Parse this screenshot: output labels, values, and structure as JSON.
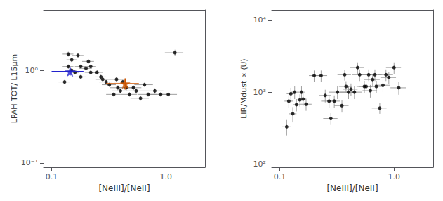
{
  "chart_data": [
    {
      "type": "scatter",
      "log": true,
      "grid": false,
      "xlabel": "[NeIII]/[NeII]",
      "ylabel": "LPAH TOT/ L15μm",
      "xlim": [
        0.085,
        2.2
      ],
      "ylim": [
        0.09,
        4.5
      ],
      "xticks": [
        {
          "value": 0.1,
          "label": "0.1"
        },
        {
          "value": 1.0,
          "label": "1.0"
        }
      ],
      "yticks": [
        {
          "value": 0.1,
          "label": "10⁻¹"
        },
        {
          "value": 1.0,
          "label": "10⁰"
        }
      ],
      "series": [
        {
          "marker": "circle",
          "color": "#000000",
          "x": [
            0.13,
            0.14,
            0.14,
            0.15,
            0.15,
            0.16,
            0.17,
            0.18,
            0.18,
            0.2,
            0.21,
            0.22,
            0.22,
            0.25,
            0.27,
            0.28,
            0.3,
            0.32,
            0.35,
            0.37,
            0.38,
            0.4,
            0.42,
            0.45,
            0.48,
            0.52,
            0.55,
            0.6,
            0.65,
            0.7,
            0.8,
            0.9,
            1.05,
            1.2
          ],
          "y": [
            0.75,
            1.1,
            1.5,
            1.3,
            1.0,
            0.95,
            1.45,
            1.1,
            0.85,
            1.05,
            1.25,
            0.95,
            1.1,
            0.95,
            0.85,
            0.8,
            0.75,
            0.7,
            0.55,
            0.8,
            0.65,
            0.6,
            0.75,
            0.65,
            0.55,
            0.65,
            0.6,
            0.5,
            0.7,
            0.55,
            0.6,
            0.55,
            0.55,
            1.55
          ],
          "xerr_lo": [
            0.015,
            0.015,
            0.015,
            0.015,
            0.015,
            0.015,
            0.02,
            0.02,
            0.02,
            0.025,
            0.025,
            0.025,
            0.025,
            0.03,
            0.03,
            0.035,
            0.04,
            0.045,
            0.05,
            0.055,
            0.055,
            0.06,
            0.065,
            0.07,
            0.08,
            0.09,
            0.1,
            0.11,
            0.12,
            0.13,
            0.15,
            0.17,
            0.2,
            0.22
          ],
          "xerr_hi": [
            0.015,
            0.015,
            0.015,
            0.015,
            0.015,
            0.015,
            0.02,
            0.02,
            0.02,
            0.025,
            0.025,
            0.025,
            0.025,
            0.03,
            0.03,
            0.035,
            0.04,
            0.045,
            0.05,
            0.055,
            0.055,
            0.06,
            0.065,
            0.07,
            0.08,
            0.09,
            0.1,
            0.11,
            0.12,
            0.13,
            0.15,
            0.17,
            0.2,
            0.22
          ],
          "yerr_lo": [
            0.04,
            0.06,
            0.09,
            0.07,
            0.05,
            0.05,
            0.09,
            0.06,
            0.05,
            0.06,
            0.07,
            0.05,
            0.06,
            0.05,
            0.05,
            0.04,
            0.04,
            0.04,
            0.03,
            0.05,
            0.04,
            0.03,
            0.04,
            0.04,
            0.03,
            0.04,
            0.04,
            0.03,
            0.04,
            0.03,
            0.04,
            0.03,
            0.03,
            0.12
          ],
          "yerr_hi": [
            0.04,
            0.06,
            0.09,
            0.07,
            0.05,
            0.05,
            0.09,
            0.06,
            0.05,
            0.06,
            0.07,
            0.05,
            0.06,
            0.05,
            0.05,
            0.04,
            0.04,
            0.04,
            0.03,
            0.05,
            0.04,
            0.03,
            0.04,
            0.04,
            0.03,
            0.04,
            0.04,
            0.03,
            0.04,
            0.03,
            0.04,
            0.03,
            0.03,
            0.12
          ]
        },
        {
          "marker": "star",
          "color": "#2222cc",
          "x": [
            0.145
          ],
          "y": [
            0.97
          ],
          "xerr_lo": [
            0.045
          ],
          "xerr_hi": [
            0.045
          ],
          "yerr_lo": [
            0.09
          ],
          "yerr_hi": [
            0.09
          ]
        },
        {
          "marker": "star",
          "color": "#cc5500",
          "x": [
            0.44
          ],
          "y": [
            0.72
          ],
          "xerr_lo": [
            0.14
          ],
          "xerr_hi": [
            0.14
          ],
          "yerr_lo": [
            0.1
          ],
          "yerr_hi": [
            0.1
          ]
        }
      ]
    },
    {
      "type": "scatter",
      "log": true,
      "grid": false,
      "xlabel": "[NeIII]/[NeII]",
      "ylabel": "LIR/Mdust ∝ ⟨U⟩",
      "xlim": [
        0.085,
        2.2
      ],
      "ylim": [
        90,
        14000
      ],
      "xticks": [
        {
          "value": 0.1,
          "label": "0.1"
        },
        {
          "value": 1.0,
          "label": "1.0"
        }
      ],
      "yticks": [
        {
          "value": 100,
          "label": "10²"
        },
        {
          "value": 1000,
          "label": "10³"
        },
        {
          "value": 10000,
          "label": "10⁴"
        }
      ],
      "series": [
        {
          "marker": "circle",
          "color": "#000000",
          "x": [
            0.115,
            0.12,
            0.125,
            0.13,
            0.135,
            0.14,
            0.15,
            0.155,
            0.16,
            0.17,
            0.2,
            0.23,
            0.25,
            0.27,
            0.28,
            0.3,
            0.32,
            0.35,
            0.37,
            0.38,
            0.4,
            0.42,
            0.45,
            0.48,
            0.5,
            0.55,
            0.57,
            0.6,
            0.62,
            0.65,
            0.68,
            0.7,
            0.75,
            0.8,
            0.85,
            0.9,
            1.0,
            1.1
          ],
          "y": [
            330,
            750,
            950,
            500,
            1000,
            670,
            780,
            1000,
            800,
            680,
            1700,
            1700,
            900,
            750,
            430,
            750,
            1000,
            650,
            1750,
            1200,
            1000,
            1100,
            1000,
            2200,
            1750,
            1200,
            1200,
            1750,
            1050,
            1500,
            1750,
            1200,
            600,
            1250,
            1750,
            1600,
            2200,
            1150
          ],
          "xerr_lo": [
            0.01,
            0.01,
            0.01,
            0.01,
            0.01,
            0.01,
            0.01,
            0.01,
            0.01,
            0.02,
            0.02,
            0.03,
            0.03,
            0.04,
            0.04,
            0.04,
            0.05,
            0.05,
            0.05,
            0.05,
            0.06,
            0.06,
            0.07,
            0.07,
            0.07,
            0.08,
            0.08,
            0.09,
            0.09,
            0.1,
            0.1,
            0.1,
            0.11,
            0.12,
            0.13,
            0.14,
            0.15,
            0.17
          ],
          "xerr_hi": [
            0.01,
            0.01,
            0.01,
            0.01,
            0.01,
            0.01,
            0.01,
            0.01,
            0.01,
            0.02,
            0.02,
            0.03,
            0.03,
            0.04,
            0.04,
            0.04,
            0.05,
            0.05,
            0.05,
            0.05,
            0.06,
            0.06,
            0.07,
            0.07,
            0.07,
            0.08,
            0.08,
            0.09,
            0.09,
            0.1,
            0.1,
            0.1,
            0.11,
            0.12,
            0.13,
            0.14,
            0.15,
            0.17
          ],
          "yerr_lo": [
            80,
            150,
            200,
            120,
            200,
            130,
            150,
            200,
            160,
            130,
            300,
            300,
            180,
            150,
            80,
            150,
            200,
            130,
            300,
            220,
            200,
            220,
            200,
            400,
            320,
            240,
            240,
            320,
            210,
            280,
            320,
            240,
            100,
            250,
            320,
            300,
            400,
            230
          ],
          "yerr_hi": [
            80,
            150,
            200,
            120,
            200,
            130,
            150,
            200,
            160,
            130,
            300,
            300,
            180,
            150,
            80,
            150,
            200,
            130,
            300,
            220,
            200,
            220,
            200,
            400,
            320,
            240,
            240,
            320,
            210,
            280,
            320,
            240,
            100,
            250,
            320,
            300,
            400,
            230
          ]
        }
      ]
    }
  ]
}
